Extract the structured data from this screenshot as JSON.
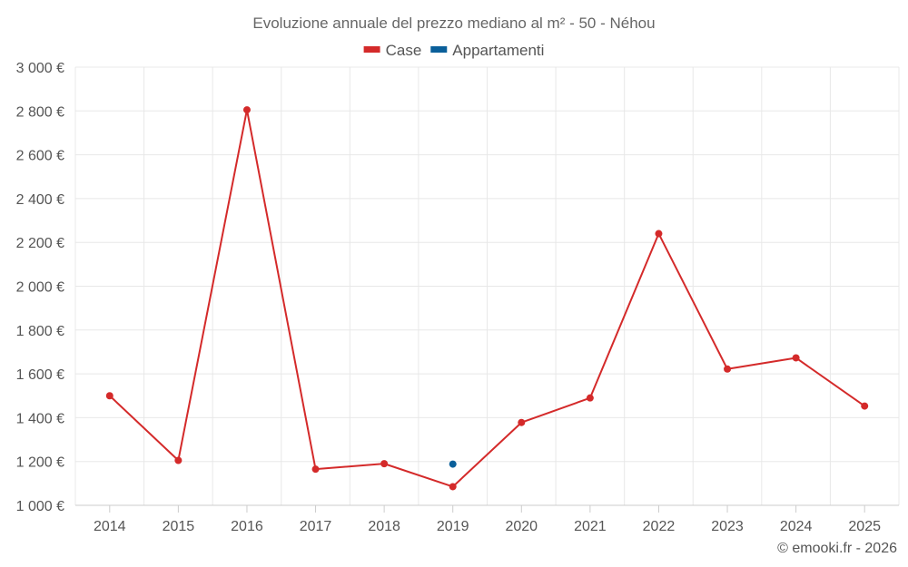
{
  "chart_data": {
    "type": "line",
    "title": "Evoluzione annuale del prezzo mediano al m² - 50 - Néhou",
    "categories": [
      "2014",
      "2015",
      "2016",
      "2017",
      "2018",
      "2019",
      "2020",
      "2021",
      "2022",
      "2023",
      "2024",
      "2025"
    ],
    "series": [
      {
        "name": "Case",
        "color": "#d42a2a",
        "values": [
          1500,
          1205,
          2805,
          1165,
          1190,
          1085,
          1378,
          1490,
          2240,
          1622,
          1673,
          1453
        ]
      },
      {
        "name": "Appartamenti",
        "color": "#0a5f9a",
        "values": [
          null,
          null,
          null,
          null,
          null,
          1188,
          null,
          null,
          null,
          null,
          null,
          null
        ]
      }
    ],
    "ylim": [
      1000,
      3000
    ],
    "yticks": [
      {
        "value": 1000,
        "label": "1 000 €"
      },
      {
        "value": 1200,
        "label": "1 200 €"
      },
      {
        "value": 1400,
        "label": "1 400 €"
      },
      {
        "value": 1600,
        "label": "1 600 €"
      },
      {
        "value": 1800,
        "label": "1 800 €"
      },
      {
        "value": 2000,
        "label": "2 000 €"
      },
      {
        "value": 2200,
        "label": "2 200 €"
      },
      {
        "value": 2400,
        "label": "2 400 €"
      },
      {
        "value": 2600,
        "label": "2 600 €"
      },
      {
        "value": 2800,
        "label": "2 800 €"
      },
      {
        "value": 3000,
        "label": "3 000 €"
      }
    ],
    "grid": true,
    "legend_position": "top-center",
    "credit": "© emooki.fr - 2026"
  }
}
